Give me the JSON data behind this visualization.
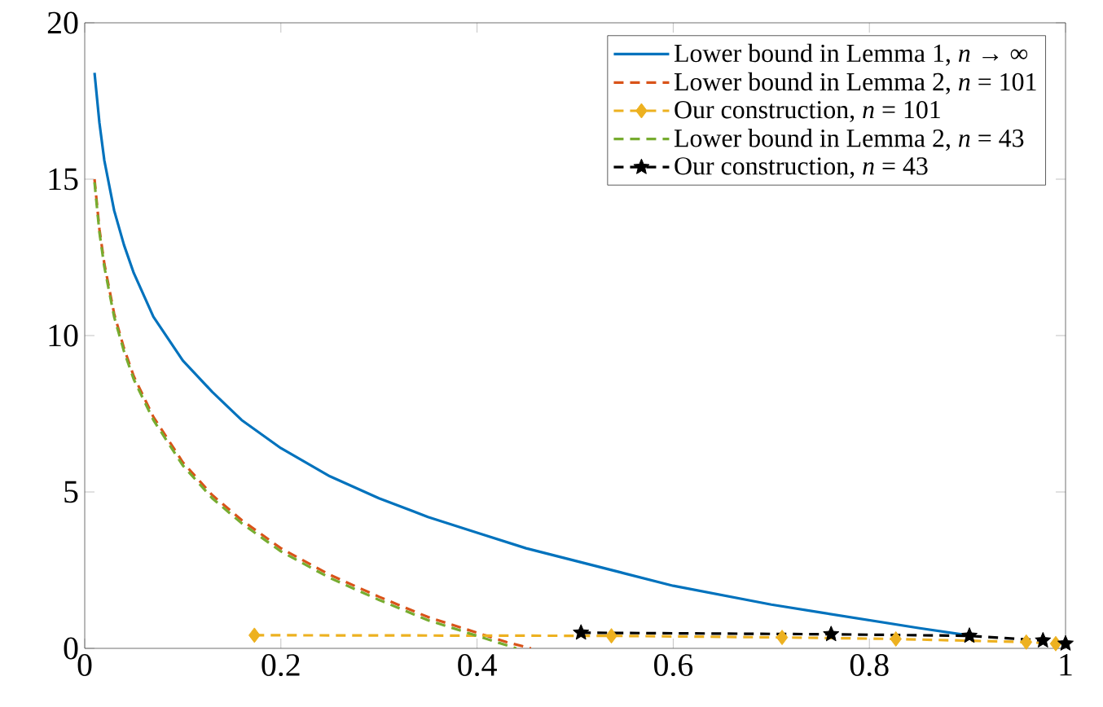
{
  "chart_data": {
    "type": "line",
    "xlim": [
      0,
      1
    ],
    "ylim": [
      0,
      20
    ],
    "xticks": [
      0,
      0.2,
      0.4,
      0.6,
      0.8,
      1
    ],
    "yticks": [
      0,
      5,
      10,
      15,
      20
    ],
    "grid": false,
    "legend": "top right",
    "series": [
      {
        "name": "Lower bound in Lemma 1, *n* → ∞",
        "color": "#0072bd",
        "line_style": "solid",
        "marker": "none",
        "x": [
          0.01,
          0.015,
          0.02,
          0.03,
          0.04,
          0.05,
          0.07,
          0.1,
          0.13,
          0.16,
          0.2,
          0.25,
          0.3,
          0.35,
          0.4,
          0.45,
          0.5,
          0.55,
          0.6,
          0.65,
          0.7,
          0.75,
          0.8,
          0.85,
          0.9
        ],
        "values": [
          18.4,
          16.8,
          15.6,
          14.0,
          12.9,
          12.0,
          10.6,
          9.2,
          8.2,
          7.3,
          6.4,
          5.5,
          4.8,
          4.2,
          3.7,
          3.2,
          2.8,
          2.4,
          2.0,
          1.7,
          1.4,
          1.15,
          0.9,
          0.65,
          0.42
        ]
      },
      {
        "name": "Lower bound in Lemma 2, *n* = 101",
        "color": "#d95319",
        "line_style": "dashed",
        "marker": "none",
        "x": [
          0.01,
          0.015,
          0.02,
          0.03,
          0.04,
          0.05,
          0.07,
          0.1,
          0.13,
          0.16,
          0.2,
          0.25,
          0.3,
          0.35,
          0.4,
          0.43,
          0.455
        ],
        "values": [
          15.0,
          13.4,
          12.3,
          10.7,
          9.6,
          8.7,
          7.4,
          5.95,
          4.9,
          4.1,
          3.2,
          2.35,
          1.65,
          1.0,
          0.5,
          0.2,
          0
        ]
      },
      {
        "name": "Our construction, *n* = 101",
        "color": "#edb120",
        "line_style": "dashed",
        "marker": "diamond",
        "x": [
          0.173,
          0.537,
          0.711,
          0.827,
          0.96,
          0.99
        ],
        "values": [
          0.42,
          0.4,
          0.35,
          0.3,
          0.2,
          0.15
        ]
      },
      {
        "name": "Lower bound in Lemma 2, *n* = 43",
        "color": "#77ac30",
        "line_style": "dashed",
        "marker": "none",
        "x": [
          0.01,
          0.015,
          0.02,
          0.03,
          0.04,
          0.05,
          0.07,
          0.1,
          0.13,
          0.16,
          0.2,
          0.25,
          0.3,
          0.35,
          0.4,
          0.44
        ],
        "values": [
          14.9,
          13.3,
          12.2,
          10.6,
          9.5,
          8.6,
          7.3,
          5.85,
          4.8,
          4.0,
          3.1,
          2.25,
          1.55,
          0.9,
          0.4,
          0
        ]
      },
      {
        "name": "Our construction, *n* = 43",
        "color": "#000000",
        "line_style": "dashed",
        "marker": "star",
        "x": [
          0.506,
          0.761,
          0.902,
          0.977,
          1.0
        ],
        "values": [
          0.5,
          0.45,
          0.4,
          0.25,
          0.15
        ]
      }
    ]
  }
}
